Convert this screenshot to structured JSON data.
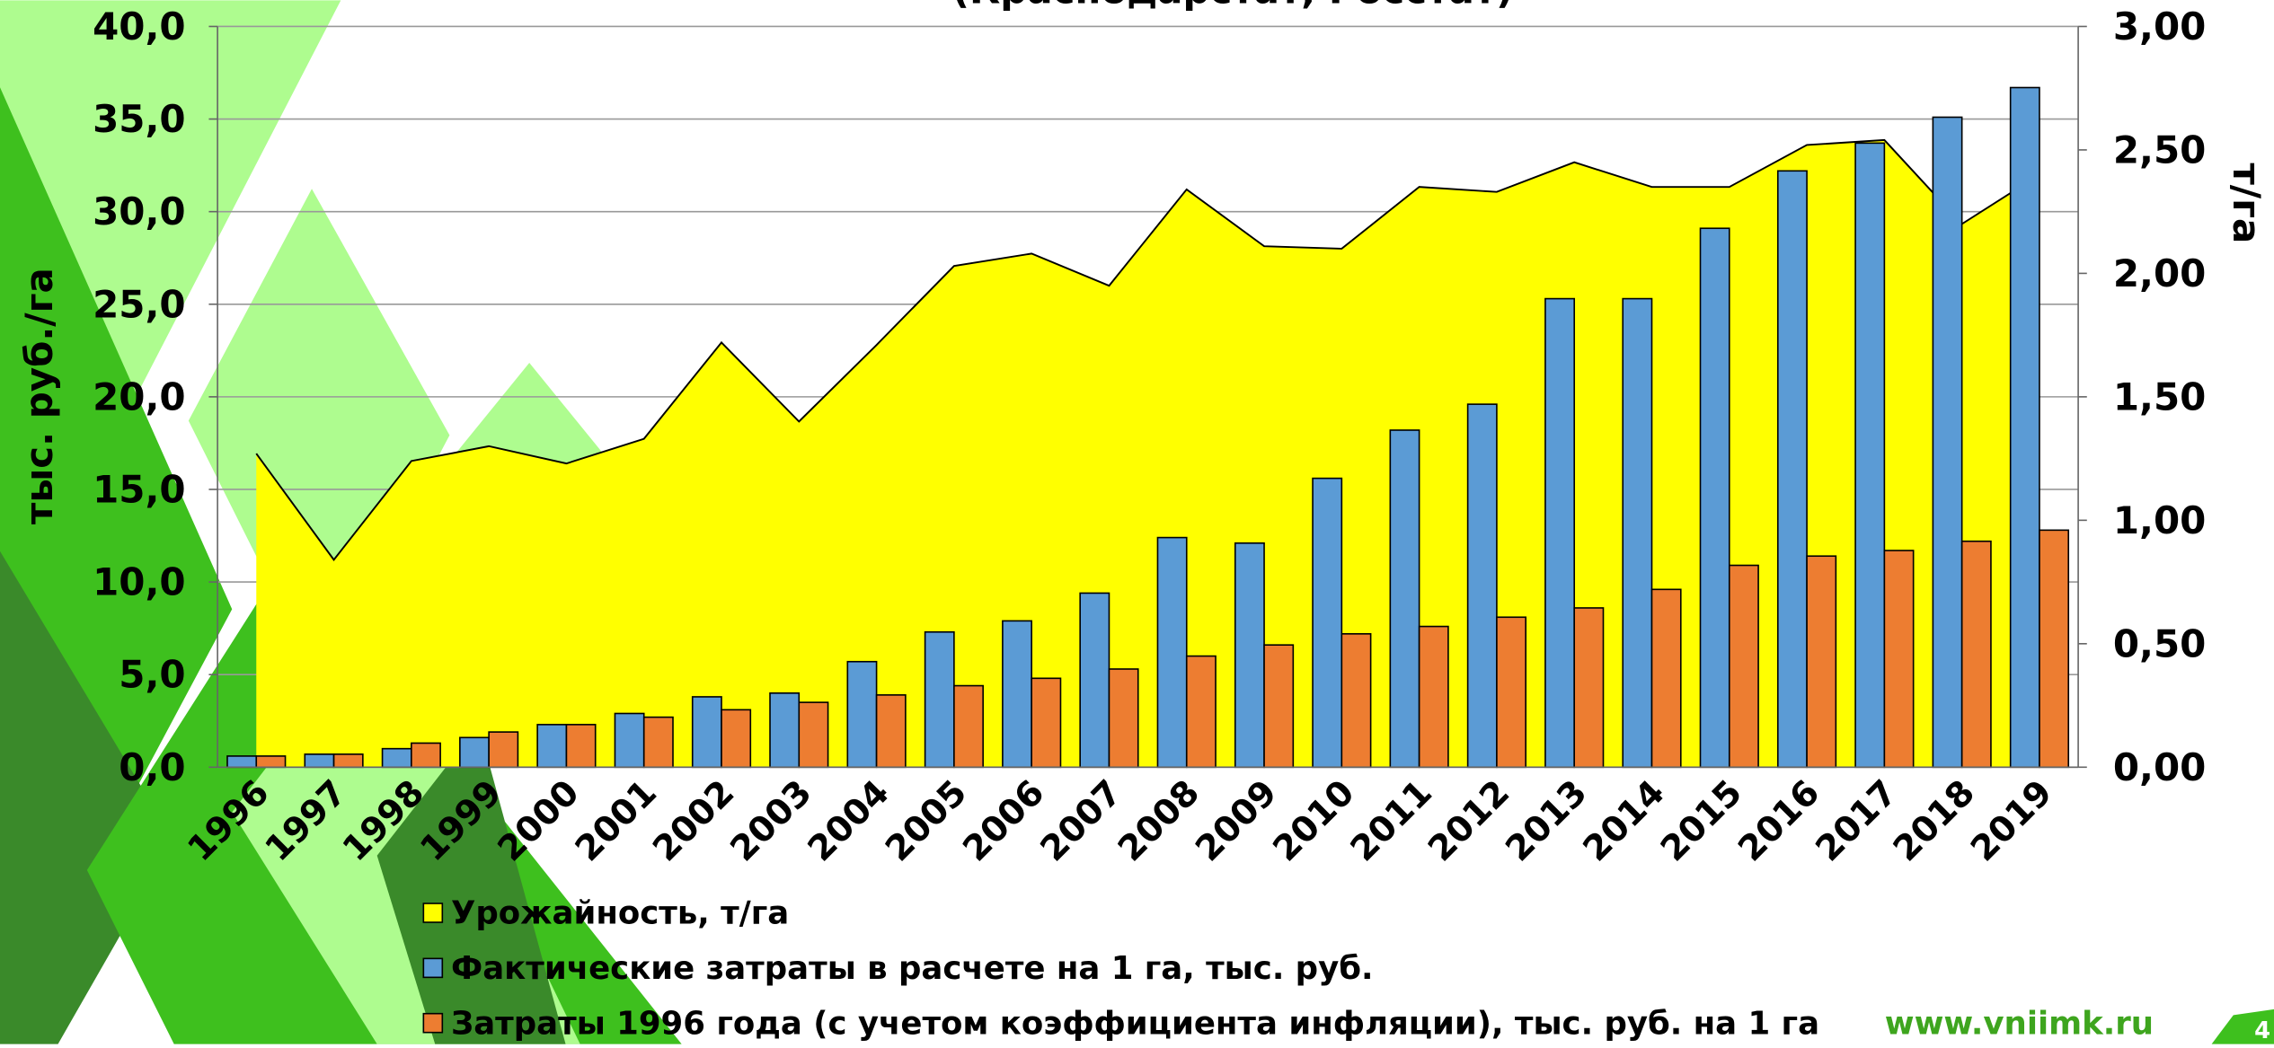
{
  "chart_data": {
    "type": "bar-area",
    "title": "(Краснодарстат, Росстат)",
    "ylabel": "тыс. руб./га",
    "y2label": "т/га",
    "categories": [
      "1996",
      "1997",
      "1998",
      "1999",
      "2000",
      "2001",
      "2002",
      "2003",
      "2004",
      "2005",
      "2006",
      "2007",
      "2008",
      "2009",
      "2010",
      "2011",
      "2012",
      "2013",
      "2014",
      "2015",
      "2016",
      "2017",
      "2018",
      "2019"
    ],
    "series": [
      {
        "name": "Урожайность, т/га",
        "color": "#ffff00",
        "axis": "y2",
        "kind": "area",
        "values": [
          1.27,
          0.84,
          1.24,
          1.3,
          1.23,
          1.33,
          1.72,
          1.4,
          1.71,
          2.03,
          2.08,
          1.95,
          2.34,
          2.11,
          2.1,
          2.35,
          2.33,
          2.45,
          2.35,
          2.35,
          2.52,
          2.54,
          2.2,
          2.4
        ]
      },
      {
        "name": "Фактические затраты в расчете на 1 га, тыс. руб.",
        "color": "#5b9bd5",
        "kind": "bar",
        "values": [
          0.6,
          0.7,
          1.0,
          1.6,
          2.3,
          2.9,
          3.8,
          4.0,
          5.7,
          7.3,
          7.9,
          9.4,
          12.4,
          12.1,
          15.6,
          18.2,
          19.6,
          25.3,
          25.3,
          29.1,
          32.2,
          33.7,
          35.1,
          36.7
        ]
      },
      {
        "name": "Затраты 1996 года (с учетом коэффициента инфляции), тыс. руб. на 1 га",
        "color": "#ed7d31",
        "kind": "bar",
        "values": [
          0.6,
          0.7,
          1.3,
          1.9,
          2.3,
          2.7,
          3.1,
          3.5,
          3.9,
          4.4,
          4.8,
          5.3,
          6.0,
          6.6,
          7.2,
          7.6,
          8.1,
          8.6,
          9.6,
          10.9,
          11.4,
          11.7,
          12.2,
          12.8
        ]
      }
    ],
    "ylim": [
      0,
      40
    ],
    "yticks": [
      {
        "value": 0,
        "label": "0,0"
      },
      {
        "value": 5,
        "label": "5,0"
      },
      {
        "value": 10,
        "label": "10,0"
      },
      {
        "value": 15,
        "label": "15,0"
      },
      {
        "value": 20,
        "label": "20,0"
      },
      {
        "value": 25,
        "label": "25,0"
      },
      {
        "value": 30,
        "label": "30,0"
      },
      {
        "value": 35,
        "label": "35,0"
      },
      {
        "value": 40,
        "label": "40,0"
      }
    ],
    "y2lim": [
      0,
      3
    ],
    "y2ticks": [
      {
        "value": 0,
        "label": "0,00"
      },
      {
        "value": 0.5,
        "label": "0,50"
      },
      {
        "value": 1,
        "label": "1,00"
      },
      {
        "value": 1.5,
        "label": "1,50"
      },
      {
        "value": 2,
        "label": "2,00"
      },
      {
        "value": 2.5,
        "label": "2,50"
      },
      {
        "value": 3,
        "label": "3,00"
      }
    ],
    "grid": true,
    "legend": "bottom"
  },
  "footer": {
    "url": "www.vniimk.ru",
    "page": "4"
  }
}
